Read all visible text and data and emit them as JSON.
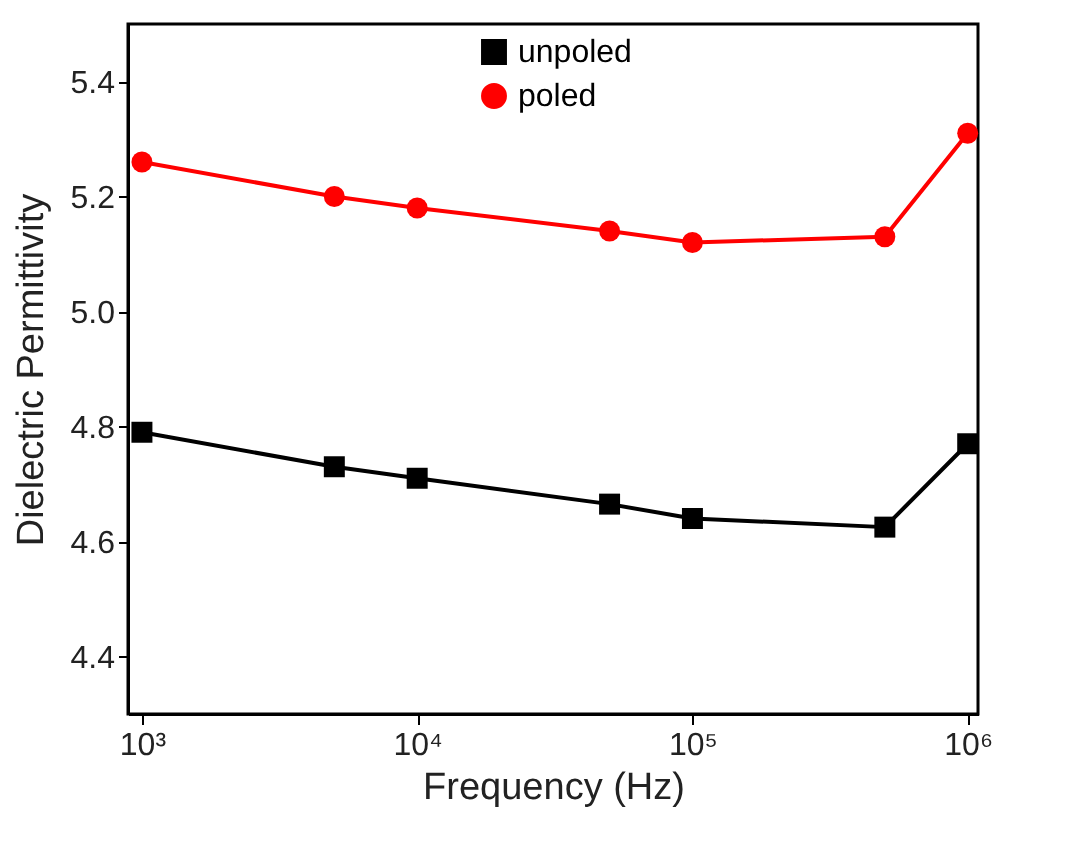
{
  "chart_data": {
    "type": "line",
    "xlabel": "Frequency (Hz)",
    "ylabel": "Dielectric Permittivity",
    "x": [
      1000,
      5000,
      10000,
      50000,
      100000,
      500000,
      1000000
    ],
    "series": [
      {
        "name": "unpoled",
        "color": "#000000",
        "marker": "square",
        "values": [
          4.79,
          4.73,
          4.71,
          4.665,
          4.64,
          4.625,
          4.77
        ]
      },
      {
        "name": "poled",
        "color": "#ff0000",
        "marker": "circle",
        "values": [
          5.26,
          5.2,
          5.18,
          5.14,
          5.12,
          5.13,
          5.31
        ]
      }
    ],
    "log": "x",
    "xlim": [
      890,
      1090000
    ],
    "xticks": [
      {
        "value": 1000,
        "label": "10³"
      },
      {
        "value": 10000,
        "label": "10⁴"
      },
      {
        "value": 100000,
        "label": "10⁵"
      },
      {
        "value": 1000000,
        "label": "10⁶"
      }
    ],
    "ylim": [
      4.3,
      5.5
    ],
    "yticks": [
      4.4,
      4.6,
      4.8,
      {
        "value": 5,
        "label": "5.0"
      },
      5.2,
      5.4
    ],
    "grid": false,
    "legend": "top",
    "line_style": "solid"
  }
}
